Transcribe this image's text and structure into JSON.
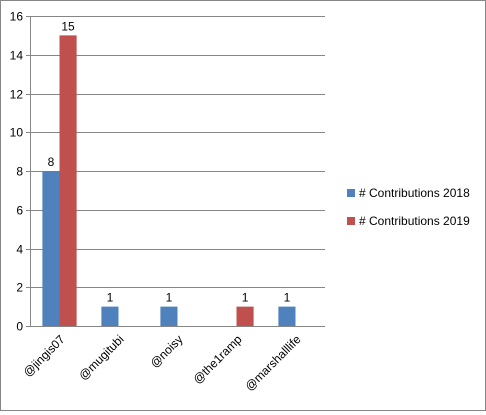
{
  "chart_data": {
    "type": "bar",
    "title": "",
    "xlabel": "",
    "ylabel": "",
    "categories": [
      "@jingis07",
      "@mugitubi",
      "@noisy",
      "@the1ramp",
      "@marshalllife"
    ],
    "series": [
      {
        "name": "# Contributions 2018",
        "color": "#4F81BD",
        "values": [
          8,
          1,
          1,
          null,
          1
        ]
      },
      {
        "name": "# Contributions 2019",
        "color": "#C0504D",
        "values": [
          15,
          null,
          null,
          1,
          null
        ]
      }
    ],
    "ylim": [
      0,
      16
    ],
    "yticks": [
      0,
      2,
      4,
      6,
      8,
      10,
      12,
      14,
      16
    ],
    "grid": true,
    "legend": "right",
    "data_labels": true
  }
}
